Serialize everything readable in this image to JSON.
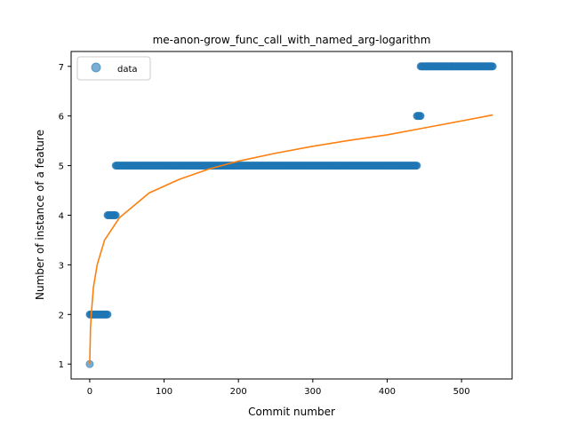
{
  "chart_data": {
    "type": "scatter",
    "title": "me-anon-grow_func_call_with_named_arg-logarithm",
    "xlabel": "Commit number",
    "ylabel": "Number of instance of a feature",
    "xlim": [
      -25,
      568
    ],
    "ylim": [
      0.7,
      7.3
    ],
    "xticks": [
      0,
      100,
      200,
      300,
      400,
      500
    ],
    "yticks": [
      1,
      2,
      3,
      4,
      5,
      6,
      7
    ],
    "grid": false,
    "legend": {
      "position": "top-left",
      "entries": [
        "data"
      ]
    },
    "colors": {
      "points": "#1f77b4",
      "fit": "#ff7f0e"
    },
    "series": [
      {
        "name": "data",
        "kind": "points",
        "segments": [
          {
            "x_start": 0,
            "x_end": 0,
            "y": 1
          },
          {
            "x_start": 0,
            "x_end": 24,
            "y": 2
          },
          {
            "x_start": 24,
            "x_end": 35,
            "y": 4
          },
          {
            "x_start": 35,
            "x_end": 440,
            "y": 5
          },
          {
            "x_start": 440,
            "x_end": 445,
            "y": 6
          },
          {
            "x_start": 445,
            "x_end": 542,
            "y": 7
          }
        ]
      },
      {
        "kind": "line",
        "function": "logarithm",
        "x": [
          0,
          1,
          2,
          5,
          10,
          20,
          40,
          80,
          120,
          160,
          200,
          250,
          300,
          350,
          400,
          450,
          500,
          542
        ],
        "y": [
          1.0,
          1.7,
          1.98,
          2.55,
          3.0,
          3.5,
          3.95,
          4.45,
          4.72,
          4.93,
          5.09,
          5.25,
          5.39,
          5.51,
          5.62,
          5.76,
          5.9,
          6.02
        ]
      }
    ]
  }
}
